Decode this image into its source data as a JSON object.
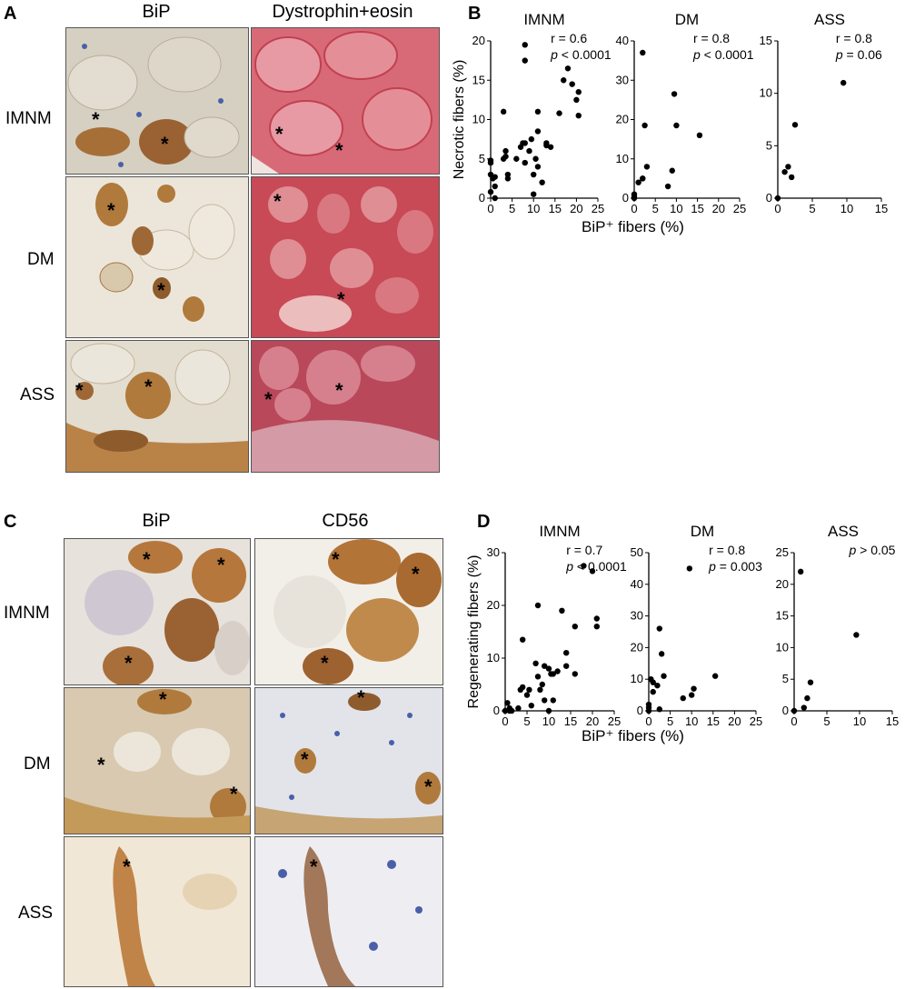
{
  "panels": {
    "A": {
      "label": "A",
      "col_headers": [
        "BiP",
        "Dystrophin+eosin"
      ],
      "row_labels": [
        "IMNM",
        "DM",
        "ASS"
      ],
      "marker": "*"
    },
    "B": {
      "label": "B",
      "shared_xlabel": "BiP⁺ fibers (%)"
    },
    "C": {
      "label": "C",
      "col_headers": [
        "BiP",
        "CD56"
      ],
      "row_labels": [
        "IMNM",
        "DM",
        "ASS"
      ],
      "marker": "*"
    },
    "D": {
      "label": "D",
      "shared_xlabel": "BiP⁺ fibers (%)"
    }
  },
  "colors": {
    "bip_stain": "#b47a3c",
    "eosin": "#d86a78",
    "cd56_stain": "#a8692e",
    "nuclei": "#4a5fa8",
    "background_tissue": "#e8e2d6"
  },
  "chart_data": [
    {
      "id": "B-IMNM",
      "type": "scatter",
      "title": "IMNM",
      "ylabel": "Necrotic fibers (%)",
      "xlabel": "",
      "xlim": [
        0,
        25
      ],
      "ylim": [
        0,
        20
      ],
      "xticks": [
        0,
        5,
        10,
        15,
        20,
        25
      ],
      "yticks": [
        0,
        5,
        10,
        15,
        20
      ],
      "annotations": [
        "r = 0.6",
        "p < 0.0001"
      ],
      "points": [
        [
          0,
          0.8
        ],
        [
          0,
          3
        ],
        [
          0,
          4.5
        ],
        [
          0,
          4.8
        ],
        [
          0.5,
          2.5
        ],
        [
          1,
          0
        ],
        [
          1,
          1.5
        ],
        [
          1,
          2.7
        ],
        [
          3,
          5
        ],
        [
          3.5,
          5.3
        ],
        [
          3.5,
          6
        ],
        [
          3,
          11
        ],
        [
          4,
          2.5
        ],
        [
          4,
          3
        ],
        [
          6,
          5
        ],
        [
          7,
          6.5
        ],
        [
          7.5,
          7
        ],
        [
          8,
          4.5
        ],
        [
          8,
          7
        ],
        [
          8,
          17.5
        ],
        [
          8,
          19.5
        ],
        [
          9,
          6
        ],
        [
          9.5,
          7.5
        ],
        [
          10,
          0.5
        ],
        [
          10,
          3
        ],
        [
          10.5,
          5
        ],
        [
          11,
          4
        ],
        [
          11,
          8.5
        ],
        [
          11,
          11
        ],
        [
          12,
          2
        ],
        [
          13,
          6.7
        ],
        [
          13,
          7
        ],
        [
          14,
          6.5
        ],
        [
          16,
          10.8
        ],
        [
          17,
          15
        ],
        [
          18,
          16.5
        ],
        [
          19,
          14.5
        ],
        [
          20,
          12.5
        ],
        [
          20.5,
          13.5
        ],
        [
          20.5,
          10.5
        ]
      ]
    },
    {
      "id": "B-DM",
      "type": "scatter",
      "title": "DM",
      "ylabel": "",
      "xlabel": "",
      "xlim": [
        0,
        25
      ],
      "ylim": [
        0,
        40
      ],
      "xticks": [
        0,
        5,
        10,
        15,
        20,
        25
      ],
      "yticks": [
        0,
        10,
        20,
        30,
        40
      ],
      "annotations": [
        "r = 0.8",
        "p < 0.0001"
      ],
      "points": [
        [
          0,
          0
        ],
        [
          0,
          0.5
        ],
        [
          0,
          1
        ],
        [
          1,
          4
        ],
        [
          2,
          5
        ],
        [
          2,
          5
        ],
        [
          2,
          37
        ],
        [
          2.5,
          18.5
        ],
        [
          3,
          8
        ],
        [
          8,
          3
        ],
        [
          9,
          7
        ],
        [
          9.5,
          26.5
        ],
        [
          10,
          18.5
        ],
        [
          15.5,
          16
        ]
      ]
    },
    {
      "id": "B-ASS",
      "type": "scatter",
      "title": "ASS",
      "ylabel": "",
      "xlabel": "",
      "xlim": [
        0,
        15
      ],
      "ylim": [
        0,
        15
      ],
      "xticks": [
        0,
        5,
        10,
        15
      ],
      "yticks": [
        0,
        5,
        10,
        15
      ],
      "annotations": [
        "r = 0.8",
        "p = 0.06"
      ],
      "points": [
        [
          0,
          0
        ],
        [
          1,
          2.5
        ],
        [
          1.5,
          3
        ],
        [
          2,
          2
        ],
        [
          2.5,
          7
        ],
        [
          9.5,
          11
        ]
      ]
    },
    {
      "id": "D-IMNM",
      "type": "scatter",
      "title": "IMNM",
      "ylabel": "Regenerating fibers (%)",
      "xlabel": "",
      "xlim": [
        0,
        25
      ],
      "ylim": [
        0,
        30
      ],
      "xticks": [
        0,
        5,
        10,
        15,
        20,
        25
      ],
      "yticks": [
        0,
        10,
        20,
        30
      ],
      "annotations": [
        "r = 0.7",
        "p < 0.0001"
      ],
      "points": [
        [
          0,
          0
        ],
        [
          0.5,
          1.5
        ],
        [
          1,
          0
        ],
        [
          1,
          0.5
        ],
        [
          1.5,
          0
        ],
        [
          3,
          0.5
        ],
        [
          3.5,
          4
        ],
        [
          4,
          4.5
        ],
        [
          4,
          13.5
        ],
        [
          5,
          3
        ],
        [
          5.5,
          4
        ],
        [
          6,
          1
        ],
        [
          7,
          9
        ],
        [
          7.5,
          6.5
        ],
        [
          7.5,
          20
        ],
        [
          8,
          4
        ],
        [
          8.5,
          5
        ],
        [
          9,
          8.5
        ],
        [
          9,
          2
        ],
        [
          10,
          0
        ],
        [
          10,
          8
        ],
        [
          10.5,
          7
        ],
        [
          11,
          7
        ],
        [
          11,
          2
        ],
        [
          12,
          7.5
        ],
        [
          13,
          19
        ],
        [
          14,
          8.5
        ],
        [
          14,
          11
        ],
        [
          16,
          7
        ],
        [
          16,
          16
        ],
        [
          18,
          27.5
        ],
        [
          20,
          26.5
        ],
        [
          21,
          16
        ],
        [
          21,
          17.5
        ]
      ]
    },
    {
      "id": "D-DM",
      "type": "scatter",
      "title": "DM",
      "ylabel": "",
      "xlabel": "",
      "xlim": [
        0,
        25
      ],
      "ylim": [
        0,
        50
      ],
      "xticks": [
        0,
        5,
        10,
        15,
        20,
        25
      ],
      "yticks": [
        0,
        10,
        20,
        30,
        40,
        50
      ],
      "annotations": [
        "r = 0.8",
        "p = 0.003"
      ],
      "points": [
        [
          0,
          0
        ],
        [
          0,
          1
        ],
        [
          0,
          2
        ],
        [
          0.5,
          10
        ],
        [
          1,
          6
        ],
        [
          1,
          9
        ],
        [
          2,
          8
        ],
        [
          2.5,
          26
        ],
        [
          3,
          18
        ],
        [
          3.5,
          11
        ],
        [
          2.5,
          0.5
        ],
        [
          8,
          4
        ],
        [
          9.5,
          45
        ],
        [
          10,
          5
        ],
        [
          10.5,
          7
        ],
        [
          15.5,
          11
        ]
      ]
    },
    {
      "id": "D-ASS",
      "type": "scatter",
      "title": "ASS",
      "ylabel": "",
      "xlabel": "",
      "xlim": [
        0,
        15
      ],
      "ylim": [
        0,
        25
      ],
      "xticks": [
        0,
        5,
        10,
        15
      ],
      "yticks": [
        0,
        5,
        10,
        15,
        20,
        25
      ],
      "annotations": [
        "p > 0.05"
      ],
      "points": [
        [
          0,
          0
        ],
        [
          1,
          22
        ],
        [
          1.5,
          0.5
        ],
        [
          2,
          2
        ],
        [
          2.5,
          4.5
        ],
        [
          9.5,
          12
        ]
      ]
    }
  ]
}
